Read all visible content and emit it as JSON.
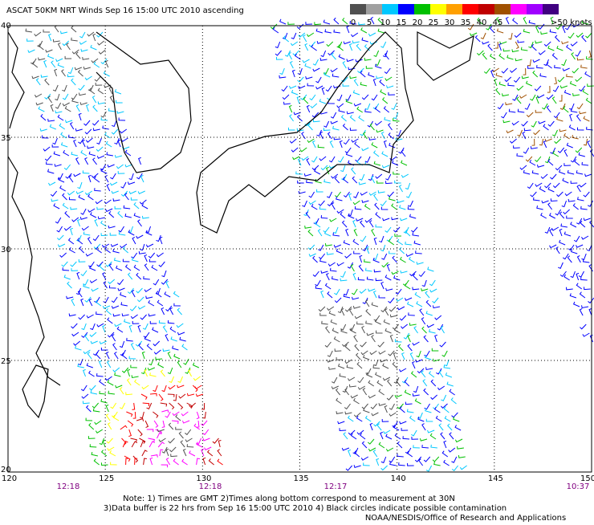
{
  "header": {
    "title": "ASCAT 50KM NRT Winds Sep 16 15:00 UTC 2010 ascending"
  },
  "colorbar": {
    "labels": [
      "0",
      "5",
      "10",
      "15",
      "20",
      "25",
      "30",
      "35",
      "40",
      "45",
      ">50 knots"
    ],
    "colors": [
      "#505050",
      "#a0a0a0",
      "#00c8ff",
      "#0000ff",
      "#00c000",
      "#ffff00",
      "#ffa000",
      "#ff0000",
      "#c00000",
      "#a05000",
      "#ff00ff",
      "#a000ff",
      "#400080"
    ]
  },
  "map": {
    "lat_labels": [
      "40",
      "35",
      "30",
      "25",
      "20"
    ],
    "lon_labels": [
      "120",
      "125",
      "130",
      "135",
      "140",
      "145",
      "150"
    ],
    "pass_times": [
      "12:18",
      "12:18",
      "12:17",
      "10:37"
    ]
  },
  "footer": {
    "notes": [
      "Note: 1) Times are GMT 2)Times along bottom correspond to measurement at 30N",
      "3)Data buffer is 22 hrs from Sep 16 15:00 UTC 2010 4) Black circles indicate possible contamination",
      "NOAA/NESDIS/Office of Research and Applications"
    ]
  }
}
